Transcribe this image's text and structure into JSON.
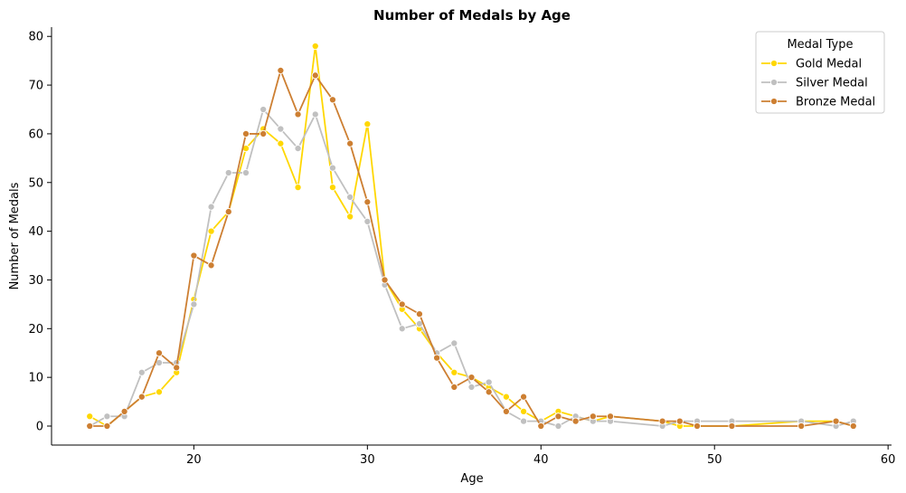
{
  "chart_data": {
    "type": "line",
    "title": "Number of Medals by Age",
    "xlabel": "Age",
    "ylabel": "Number of Medals",
    "xlim": [
      11.8,
      60.2
    ],
    "ylim": [
      -3.9,
      81.9
    ],
    "xticks": [
      20,
      30,
      40,
      50,
      60
    ],
    "yticks": [
      0,
      10,
      20,
      30,
      40,
      50,
      60,
      70,
      80
    ],
    "grid": false,
    "legend": {
      "title": "Medal Type",
      "position": "top-right"
    },
    "series": [
      {
        "name": "Gold Medal",
        "color": "#FFD700",
        "points": [
          [
            14,
            2
          ],
          [
            15,
            0
          ],
          [
            16,
            3
          ],
          [
            17,
            6
          ],
          [
            18,
            7
          ],
          [
            19,
            11
          ],
          [
            20,
            26
          ],
          [
            21,
            40
          ],
          [
            22,
            44
          ],
          [
            23,
            57
          ],
          [
            24,
            61
          ],
          [
            25,
            58
          ],
          [
            26,
            49
          ],
          [
            27,
            78
          ],
          [
            28,
            49
          ],
          [
            29,
            43
          ],
          [
            30,
            62
          ],
          [
            31,
            30
          ],
          [
            32,
            24
          ],
          [
            33,
            20
          ],
          [
            34,
            15
          ],
          [
            35,
            11
          ],
          [
            36,
            10
          ],
          [
            37,
            8
          ],
          [
            38,
            6
          ],
          [
            39,
            3
          ],
          [
            40,
            1
          ],
          [
            41,
            3
          ],
          [
            42,
            2
          ],
          [
            43,
            1
          ],
          [
            44,
            2
          ],
          [
            47,
            1
          ],
          [
            48,
            0
          ],
          [
            49,
            0
          ],
          [
            51,
            0
          ],
          [
            55,
            1
          ],
          [
            57,
            1
          ],
          [
            58,
            0
          ]
        ]
      },
      {
        "name": "Silver Medal",
        "color": "#C0C0C0",
        "points": [
          [
            14,
            0
          ],
          [
            15,
            2
          ],
          [
            16,
            2
          ],
          [
            17,
            11
          ],
          [
            18,
            13
          ],
          [
            19,
            13
          ],
          [
            20,
            25
          ],
          [
            21,
            45
          ],
          [
            22,
            52
          ],
          [
            23,
            52
          ],
          [
            24,
            65
          ],
          [
            25,
            61
          ],
          [
            26,
            57
          ],
          [
            27,
            64
          ],
          [
            28,
            53
          ],
          [
            29,
            47
          ],
          [
            30,
            42
          ],
          [
            31,
            29
          ],
          [
            32,
            20
          ],
          [
            33,
            21
          ],
          [
            34,
            15
          ],
          [
            35,
            17
          ],
          [
            36,
            8
          ],
          [
            37,
            9
          ],
          [
            38,
            3
          ],
          [
            39,
            1
          ],
          [
            40,
            1
          ],
          [
            41,
            0
          ],
          [
            42,
            2
          ],
          [
            43,
            1
          ],
          [
            44,
            1
          ],
          [
            47,
            0
          ],
          [
            48,
            1
          ],
          [
            49,
            1
          ],
          [
            51,
            1
          ],
          [
            55,
            1
          ],
          [
            57,
            0
          ],
          [
            58,
            1
          ]
        ]
      },
      {
        "name": "Bronze Medal",
        "color": "#CD7F32",
        "points": [
          [
            14,
            0
          ],
          [
            15,
            0
          ],
          [
            16,
            3
          ],
          [
            17,
            6
          ],
          [
            18,
            15
          ],
          [
            19,
            12
          ],
          [
            20,
            35
          ],
          [
            21,
            33
          ],
          [
            22,
            44
          ],
          [
            23,
            60
          ],
          [
            24,
            60
          ],
          [
            25,
            73
          ],
          [
            26,
            64
          ],
          [
            27,
            72
          ],
          [
            28,
            67
          ],
          [
            29,
            58
          ],
          [
            30,
            46
          ],
          [
            31,
            30
          ],
          [
            32,
            25
          ],
          [
            33,
            23
          ],
          [
            34,
            14
          ],
          [
            35,
            8
          ],
          [
            36,
            10
          ],
          [
            37,
            7
          ],
          [
            38,
            3
          ],
          [
            39,
            6
          ],
          [
            40,
            0
          ],
          [
            41,
            2
          ],
          [
            42,
            1
          ],
          [
            43,
            2
          ],
          [
            44,
            2
          ],
          [
            47,
            1
          ],
          [
            48,
            1
          ],
          [
            49,
            0
          ],
          [
            51,
            0
          ],
          [
            55,
            0
          ],
          [
            57,
            1
          ],
          [
            58,
            0
          ]
        ]
      }
    ]
  }
}
